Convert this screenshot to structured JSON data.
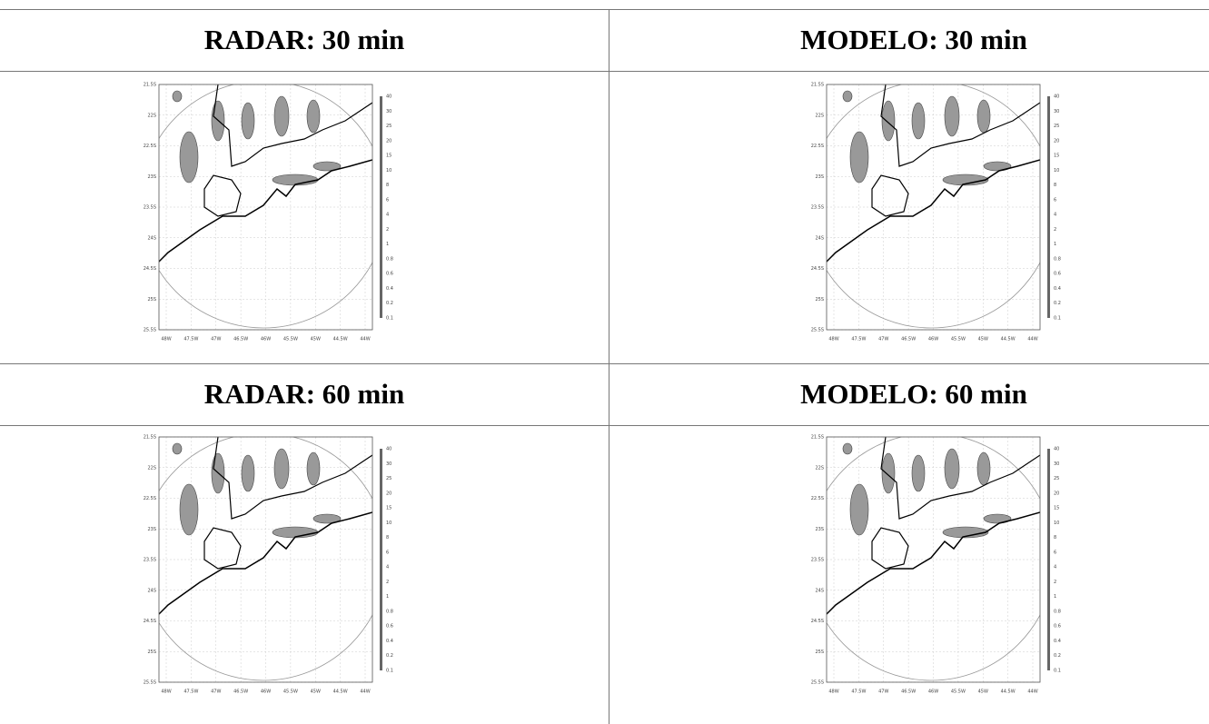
{
  "table": {
    "rows": [
      [
        "RADAR: 30 min",
        "MODELO: 30 min"
      ],
      [
        "RADAR: 60 min",
        "MODELO: 60 min"
      ]
    ]
  },
  "map": {
    "lat_labels": [
      "21.5S",
      "22S",
      "22.5S",
      "23S",
      "23.5S",
      "24S",
      "24.5S",
      "25S",
      "25.5S"
    ],
    "lon_labels": [
      "48W",
      "47.5W",
      "47W",
      "46.5W",
      "46W",
      "45.5W",
      "45W",
      "44.5W",
      "44W"
    ],
    "colorbar_labels": [
      "40",
      "30",
      "25",
      "20",
      "15",
      "10",
      "8",
      "6",
      "4",
      "2",
      "1",
      "0.8",
      "0.6",
      "0.4",
      "0.2",
      "0.1"
    ]
  }
}
